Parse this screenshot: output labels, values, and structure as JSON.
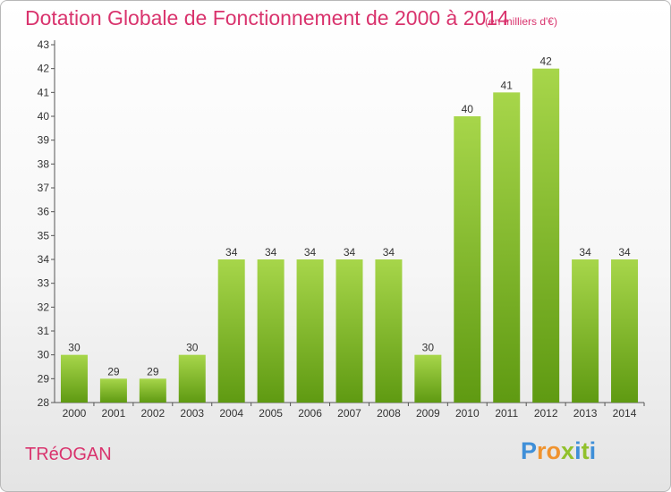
{
  "header": {
    "title": "Dotation Globale de Fonctionnement de 2000 à 2014",
    "subtitle": "(en milliers d'€)"
  },
  "footer": {
    "commune": "TRéOGAN",
    "logo": {
      "text": "Proxiti",
      "colors": [
        "#3f8fd8",
        "#f0932f",
        "#92c12c"
      ]
    }
  },
  "colors": {
    "bar_light": "#a7d64a",
    "bar_dark": "#5f9a12",
    "text_accent": "#d9336d"
  },
  "chart_data": {
    "type": "bar",
    "title": "Dotation Globale de Fonctionnement de 2000 à 2014",
    "subtitle": "(en milliers d'€)",
    "xlabel": "",
    "ylabel": "",
    "categories": [
      "2000",
      "2001",
      "2002",
      "2003",
      "2004",
      "2005",
      "2006",
      "2007",
      "2008",
      "2009",
      "2010",
      "2011",
      "2012",
      "2013",
      "2014"
    ],
    "values": [
      30,
      29,
      29,
      30,
      34,
      34,
      34,
      34,
      34,
      30,
      40,
      41,
      42,
      34,
      34
    ],
    "ylim": [
      28,
      43
    ],
    "yticks": [
      28,
      29,
      30,
      31,
      32,
      33,
      34,
      35,
      36,
      37,
      38,
      39,
      40,
      41,
      42,
      43
    ],
    "grid": false,
    "show_value_labels": true
  }
}
